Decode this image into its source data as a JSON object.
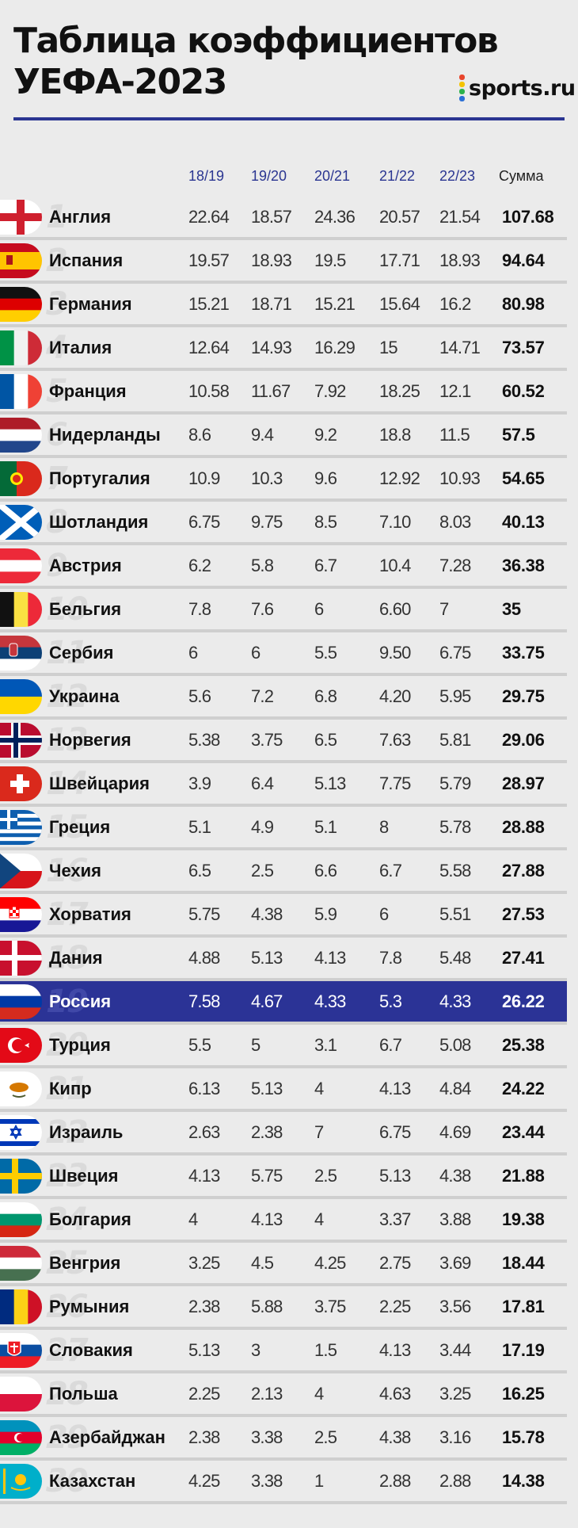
{
  "header": {
    "title_line1": "Таблица коэффициентов",
    "title_line2": "УЕФА-2023",
    "logo_text": "sports.ru",
    "logo_colors": [
      "#e8452c",
      "#f4c300",
      "#2cb24b",
      "#2b6fd6"
    ],
    "accent_color": "#2a3591"
  },
  "columns": [
    "18/19",
    "19/20",
    "20/21",
    "21/22",
    "22/23",
    "Сумма"
  ],
  "highlight_color": "#2b3396",
  "rows": [
    {
      "rank": "1",
      "country": "Англия",
      "flag": "england-flag-icon",
      "values": [
        "22.64",
        "18.57",
        "24.36",
        "20.57",
        "21.54"
      ],
      "total": "107.68"
    },
    {
      "rank": "2",
      "country": "Испания",
      "flag": "spain-flag-icon",
      "values": [
        "19.57",
        "18.93",
        "19.5",
        "17.71",
        "18.93"
      ],
      "total": "94.64"
    },
    {
      "rank": "3",
      "country": "Германия",
      "flag": "germany-flag-icon",
      "values": [
        "15.21",
        "18.71",
        "15.21",
        "15.64",
        "16.2"
      ],
      "total": "80.98"
    },
    {
      "rank": "4",
      "country": "Италия",
      "flag": "italy-flag-icon",
      "values": [
        "12.64",
        "14.93",
        "16.29",
        "15",
        "14.71"
      ],
      "total": "73.57"
    },
    {
      "rank": "5",
      "country": "Франция",
      "flag": "france-flag-icon",
      "values": [
        "10.58",
        "11.67",
        "7.92",
        "18.25",
        "12.1"
      ],
      "total": "60.52"
    },
    {
      "rank": "6",
      "country": "Нидерланды",
      "flag": "netherlands-flag-icon",
      "values": [
        "8.6",
        "9.4",
        "9.2",
        "18.8",
        "11.5"
      ],
      "total": "57.5"
    },
    {
      "rank": "7",
      "country": "Португалия",
      "flag": "portugal-flag-icon",
      "values": [
        "10.9",
        "10.3",
        "9.6",
        "12.92",
        "10.93"
      ],
      "total": "54.65"
    },
    {
      "rank": "8",
      "country": "Шотландия",
      "flag": "scotland-flag-icon",
      "values": [
        "6.75",
        "9.75",
        "8.5",
        "7.10",
        "8.03"
      ],
      "total": "40.13"
    },
    {
      "rank": "9",
      "country": "Австрия",
      "flag": "austria-flag-icon",
      "values": [
        "6.2",
        "5.8",
        "6.7",
        "10.4",
        "7.28"
      ],
      "total": "36.38"
    },
    {
      "rank": "10",
      "country": "Бельгия",
      "flag": "belgium-flag-icon",
      "values": [
        "7.8",
        "7.6",
        "6",
        "6.60",
        "7"
      ],
      "total": "35"
    },
    {
      "rank": "11",
      "country": "Сербия",
      "flag": "serbia-flag-icon",
      "values": [
        "6",
        "6",
        "5.5",
        "9.50",
        "6.75"
      ],
      "total": "33.75"
    },
    {
      "rank": "12",
      "country": "Украина",
      "flag": "ukraine-flag-icon",
      "values": [
        "5.6",
        "7.2",
        "6.8",
        "4.20",
        "5.95"
      ],
      "total": "29.75"
    },
    {
      "rank": "13",
      "country": "Норвегия",
      "flag": "norway-flag-icon",
      "values": [
        "5.38",
        "3.75",
        "6.5",
        "7.63",
        "5.81"
      ],
      "total": "29.06"
    },
    {
      "rank": "14",
      "country": "Швейцария",
      "flag": "switzerland-flag-icon",
      "values": [
        "3.9",
        "6.4",
        "5.13",
        "7.75",
        "5.79"
      ],
      "total": "28.97"
    },
    {
      "rank": "15",
      "country": "Греция",
      "flag": "greece-flag-icon",
      "values": [
        "5.1",
        "4.9",
        "5.1",
        "8",
        "5.78"
      ],
      "total": "28.88"
    },
    {
      "rank": "16",
      "country": "Чехия",
      "flag": "czechia-flag-icon",
      "values": [
        "6.5",
        "2.5",
        "6.6",
        "6.7",
        "5.58"
      ],
      "total": "27.88"
    },
    {
      "rank": "17",
      "country": "Хорватия",
      "flag": "croatia-flag-icon",
      "values": [
        "5.75",
        "4.38",
        "5.9",
        "6",
        "5.51"
      ],
      "total": "27.53"
    },
    {
      "rank": "18",
      "country": "Дания",
      "flag": "denmark-flag-icon",
      "values": [
        "4.88",
        "5.13",
        "4.13",
        "7.8",
        "5.48"
      ],
      "total": "27.41"
    },
    {
      "rank": "19",
      "country": "Россия",
      "flag": "russia-flag-icon",
      "values": [
        "7.58",
        "4.67",
        "4.33",
        "5.3",
        "4.33"
      ],
      "total": "26.22",
      "highlight": true
    },
    {
      "rank": "20",
      "country": "Турция",
      "flag": "turkey-flag-icon",
      "values": [
        "5.5",
        "5",
        "3.1",
        "6.7",
        "5.08"
      ],
      "total": "25.38"
    },
    {
      "rank": "21",
      "country": "Кипр",
      "flag": "cyprus-flag-icon",
      "values": [
        "6.13",
        "5.13",
        "4",
        "4.13",
        "4.84"
      ],
      "total": "24.22"
    },
    {
      "rank": "22",
      "country": "Израиль",
      "flag": "israel-flag-icon",
      "values": [
        "2.63",
        "2.38",
        "7",
        "6.75",
        "4.69"
      ],
      "total": "23.44"
    },
    {
      "rank": "23",
      "country": "Швеция",
      "flag": "sweden-flag-icon",
      "values": [
        "4.13",
        "5.75",
        "2.5",
        "5.13",
        "4.38"
      ],
      "total": "21.88"
    },
    {
      "rank": "24",
      "country": "Болгария",
      "flag": "bulgaria-flag-icon",
      "values": [
        "4",
        "4.13",
        "4",
        "3.37",
        "3.88"
      ],
      "total": "19.38"
    },
    {
      "rank": "25",
      "country": "Венгрия",
      "flag": "hungary-flag-icon",
      "values": [
        "3.25",
        "4.5",
        "4.25",
        "2.75",
        "3.69"
      ],
      "total": "18.44"
    },
    {
      "rank": "26",
      "country": "Румыния",
      "flag": "romania-flag-icon",
      "values": [
        "2.38",
        "5.88",
        "3.75",
        "2.25",
        "3.56"
      ],
      "total": "17.81"
    },
    {
      "rank": "27",
      "country": "Словакия",
      "flag": "slovakia-flag-icon",
      "values": [
        "5.13",
        "3",
        "1.5",
        "4.13",
        "3.44"
      ],
      "total": "17.19"
    },
    {
      "rank": "28",
      "country": "Польша",
      "flag": "poland-flag-icon",
      "values": [
        "2.25",
        "2.13",
        "4",
        "4.63",
        "3.25"
      ],
      "total": "16.25"
    },
    {
      "rank": "29",
      "country": "Азербайджан",
      "flag": "azerbaijan-flag-icon",
      "values": [
        "2.38",
        "3.38",
        "2.5",
        "4.38",
        "3.16"
      ],
      "total": "15.78"
    },
    {
      "rank": "30",
      "country": "Казахстан",
      "flag": "kazakhstan-flag-icon",
      "values": [
        "4.25",
        "3.38",
        "1",
        "2.88",
        "2.88"
      ],
      "total": "14.38"
    }
  ]
}
